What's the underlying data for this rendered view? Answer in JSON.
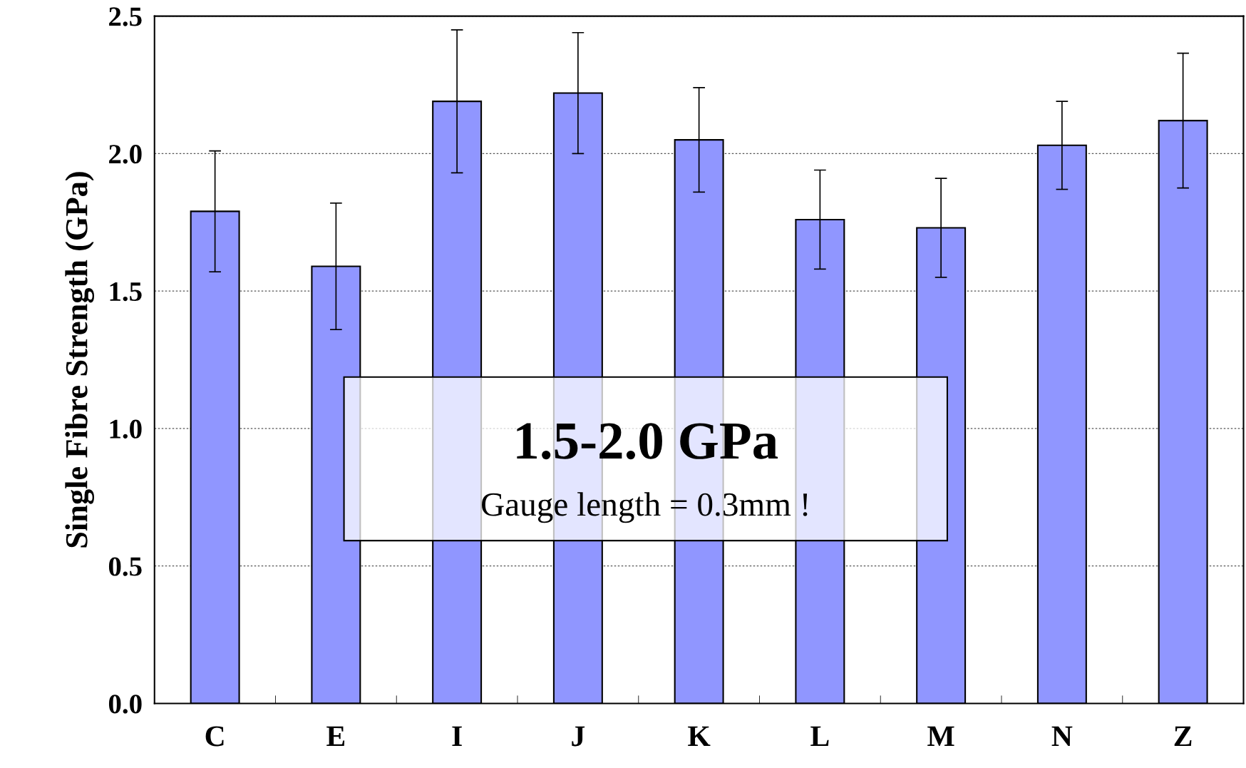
{
  "chart_data": {
    "type": "bar",
    "ylabel": "Single Fibre Strength (GPa)",
    "categories": [
      "C",
      "E",
      "I",
      "J",
      "K",
      "L",
      "M",
      "N",
      "Z"
    ],
    "values": [
      1.79,
      1.59,
      2.19,
      2.22,
      2.05,
      1.76,
      1.73,
      2.03,
      2.12
    ],
    "errors": [
      0.22,
      0.23,
      0.26,
      0.22,
      0.19,
      0.18,
      0.18,
      0.16,
      0.245
    ],
    "color": "#9096ff",
    "ylim": [
      0,
      2.5
    ],
    "yticks": [
      {
        "value": 0,
        "label": "0.0"
      },
      {
        "value": 0.5,
        "label": "0.5"
      },
      {
        "value": 1.0,
        "label": "1.0"
      },
      {
        "value": 1.5,
        "label": "1.5"
      },
      {
        "value": 2.0,
        "label": "2.0"
      },
      {
        "value": 2.5,
        "label": "2.5"
      }
    ],
    "grid": "y",
    "annotations": [
      "1.5-2.0 GPa",
      "Gauge length = 0.3mm !"
    ]
  }
}
